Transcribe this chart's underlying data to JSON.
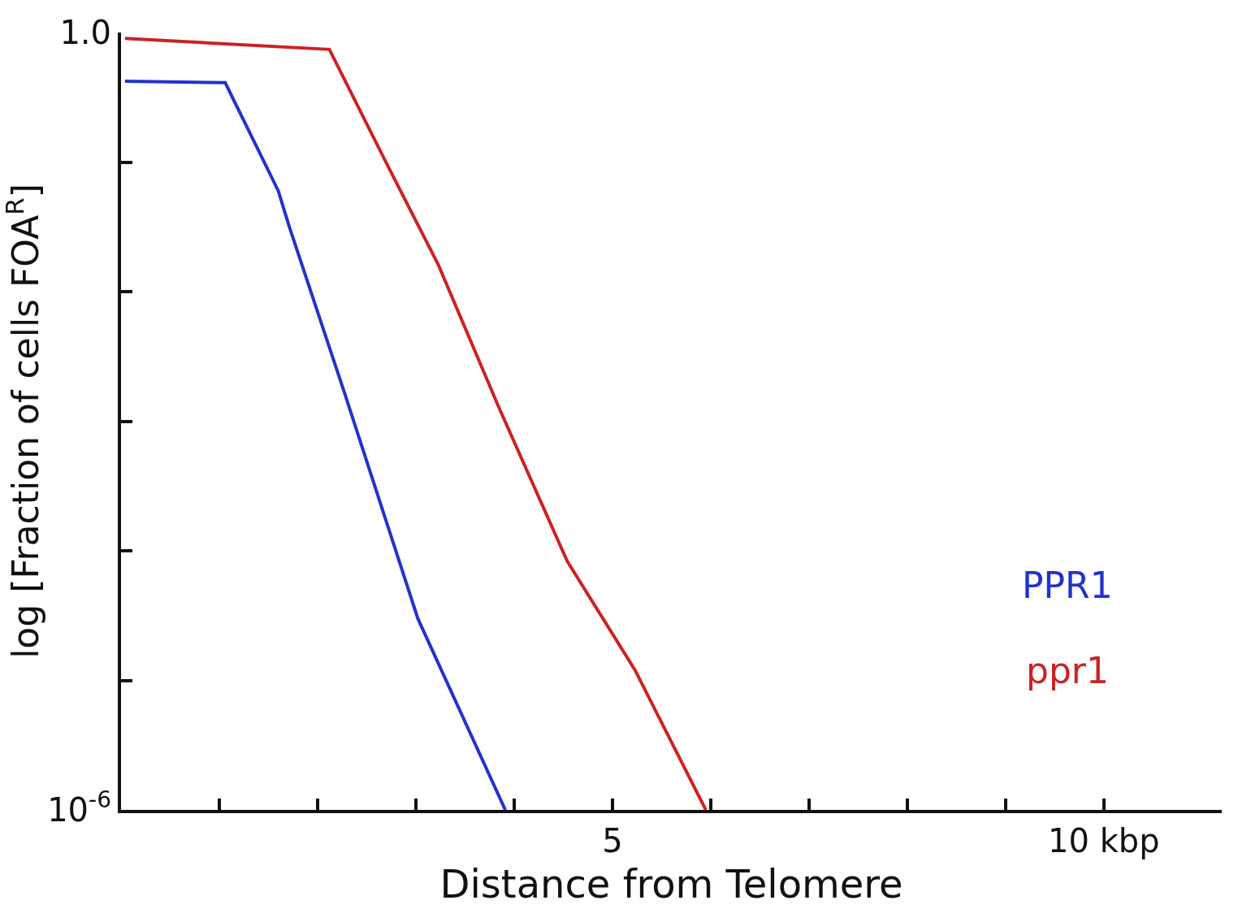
{
  "chart_data": {
    "type": "line",
    "xlabel": "Distance from Telomere",
    "ylabel": "log [Fraction of cells FOA$^{R}$]",
    "x": [
      0.04,
      1.06,
      1.6,
      1.71,
      2.28,
      3.02,
      3.91
    ],
    "series": [
      {
        "name": "PPR1",
        "color": "#2233cc",
        "values": [
          0.42,
          0.41,
          0.06,
          0.032,
          0.0016,
          3e-05,
          1e-06
        ]
      },
      {
        "name": "ppr1",
        "color": "#cc2222",
        "x": [
          0.04,
          2.12,
          2.71,
          3.23,
          3.84,
          4.54,
          5.23,
          5.95
        ],
        "values": [
          0.9,
          0.74,
          0.095,
          0.016,
          0.0013,
          8.3e-05,
          1.2e-05,
          1e-06
        ]
      }
    ],
    "log": "y",
    "ylim": [
      1e-06,
      1.0
    ],
    "yticks": [
      {
        "value": 1.0,
        "label": "1.0"
      },
      {
        "value": 0.1,
        "label": null
      },
      {
        "value": 0.01,
        "label": null
      },
      {
        "value": 0.001,
        "label": null
      },
      {
        "value": 0.0001,
        "label": null
      },
      {
        "value": 1e-05,
        "label": null
      },
      {
        "value": 1e-06,
        "label": "10$^{-6}$"
      }
    ],
    "xlim": [
      0,
      11.2
    ],
    "xticks": [
      {
        "value": 1,
        "label": null
      },
      {
        "value": 2,
        "label": null
      },
      {
        "value": 3,
        "label": null
      },
      {
        "value": 4,
        "label": null
      },
      5,
      {
        "value": 6,
        "label": null
      },
      {
        "value": 7,
        "label": null
      },
      {
        "value": 8,
        "label": null
      },
      {
        "value": 9,
        "label": null
      },
      {
        "value": 10,
        "label": "10 kbp"
      }
    ],
    "legend": "right",
    "marker": "none",
    "line_style": "solid"
  }
}
